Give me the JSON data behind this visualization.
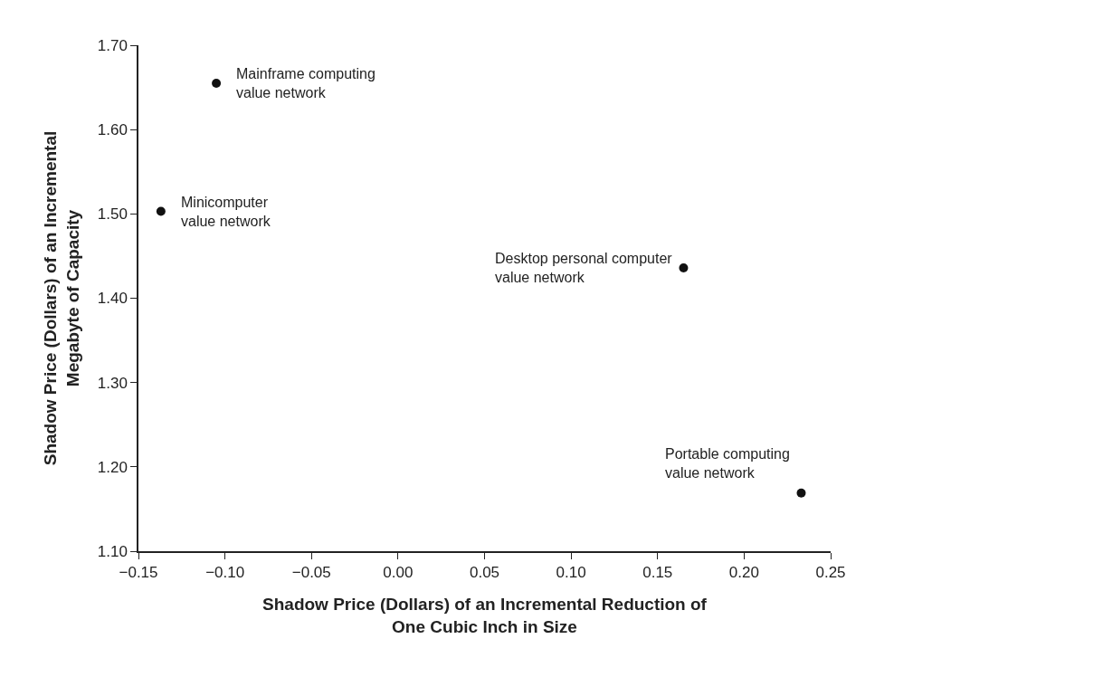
{
  "chart_data": {
    "type": "scatter",
    "xlabel": "Shadow Price (Dollars) of an Incremental Reduction of\nOne Cubic Inch in Size",
    "ylabel": "Shadow Price (Dollars) of an Incremental\nMegabyte of Capacity",
    "x": [
      -0.105,
      -0.137,
      0.165,
      0.233
    ],
    "series": [
      {
        "color": "#111111",
        "values": [
          1.655,
          1.503,
          1.436,
          1.169
        ]
      }
    ],
    "marker": "circle",
    "xlim": [
      -0.15,
      0.25
    ],
    "xticks": [
      {
        "value": -0.15,
        "label": "−0.15"
      },
      {
        "value": -0.1,
        "label": "−0.10"
      },
      {
        "value": -0.05,
        "label": "−0.05"
      },
      {
        "value": 0,
        "label": "0.00"
      },
      {
        "value": 0.05,
        "label": "0.05"
      },
      {
        "value": 0.1,
        "label": "0.10"
      },
      {
        "value": 0.15,
        "label": "0.15"
      },
      {
        "value": 0.2,
        "label": "0.20"
      },
      {
        "value": 0.25,
        "label": "0.25"
      }
    ],
    "ylim": [
      1.1,
      1.7
    ],
    "yticks": [
      {
        "value": 1.1,
        "label": "1.10"
      },
      {
        "value": 1.2,
        "label": "1.20"
      },
      {
        "value": 1.3,
        "label": "1.30"
      },
      {
        "value": 1.4,
        "label": "1.40"
      },
      {
        "value": 1.5,
        "label": "1.50"
      },
      {
        "value": 1.6,
        "label": "1.60"
      },
      {
        "value": 1.7,
        "label": "1.70"
      }
    ],
    "annotations": [
      {
        "text": "Mainframe computing\nvalue network",
        "x": -0.105,
        "y": 1.655
      },
      {
        "text": "Minicomputer\nvalue network",
        "x": -0.137,
        "y": 1.503
      },
      {
        "text": "Desktop personal computer\nvalue network",
        "x": 0.165,
        "y": 1.436
      },
      {
        "text": "Portable computing\nvalue network",
        "x": 0.233,
        "y": 1.169
      }
    ]
  }
}
